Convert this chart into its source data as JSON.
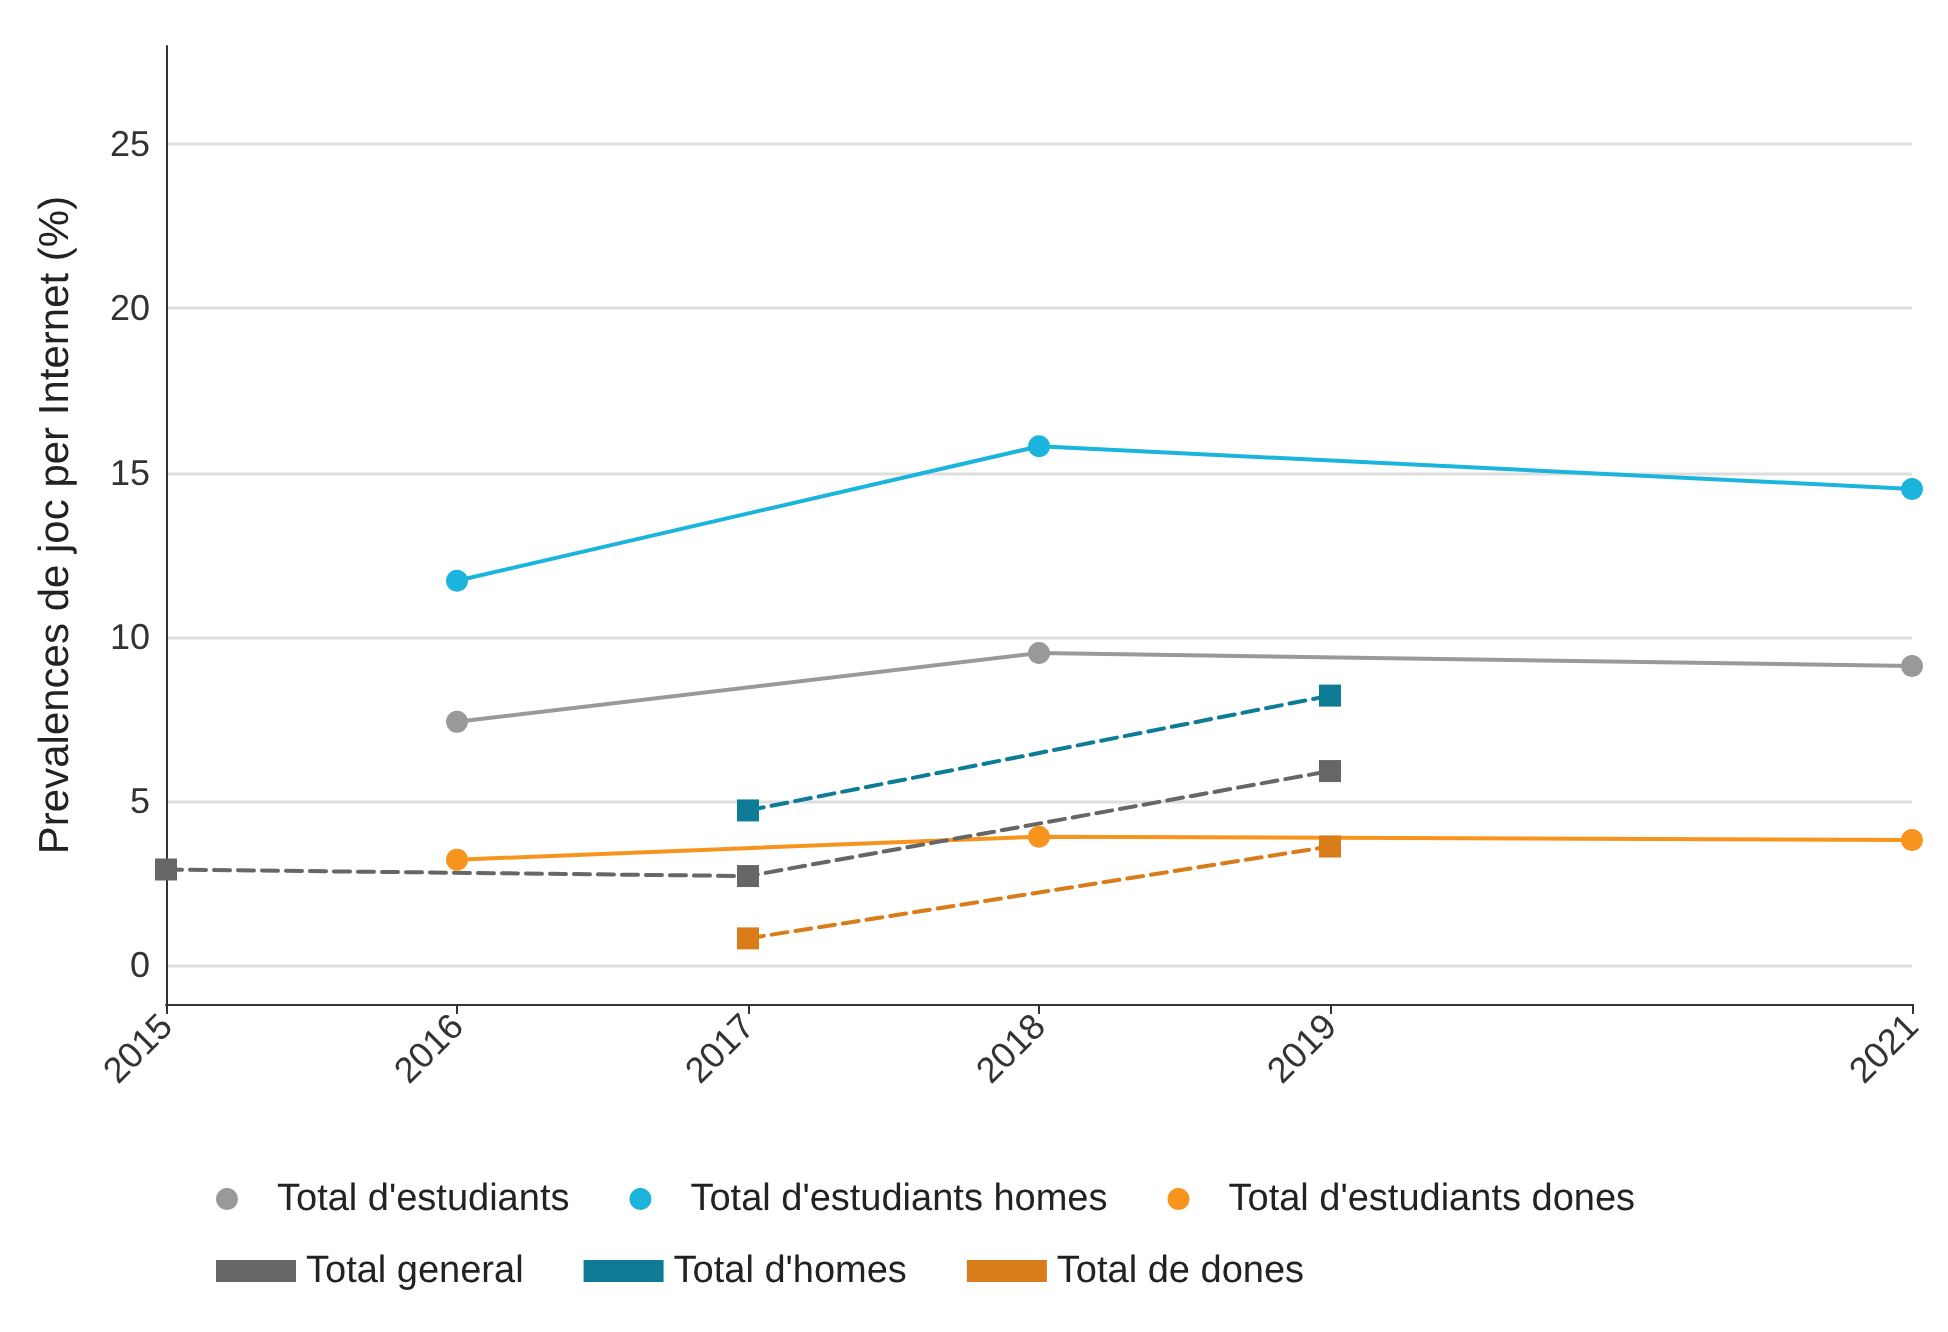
{
  "chart_data": {
    "type": "line",
    "ylabel": "Prevalences de joc per Internet (%)",
    "xlim": [
      2015,
      2021
    ],
    "xticks": [
      2015,
      2016,
      2017,
      2018,
      2019,
      2021
    ],
    "ylim": [
      -1.2,
      28
    ],
    "yticks": [
      0,
      5,
      10,
      15,
      20,
      25
    ],
    "grid": "y",
    "legend": "bottom",
    "series": [
      {
        "name": "Total d'estudiants",
        "color": "#999999",
        "marker": "circle",
        "line_style": "solid",
        "x": [
          2016,
          2018,
          2021
        ],
        "values": [
          7.4,
          9.5,
          9.1
        ]
      },
      {
        "name": "Total d'estudiants homes",
        "color": "#1ab4dc",
        "marker": "circle",
        "line_style": "solid",
        "x": [
          2016,
          2018,
          2021
        ],
        "values": [
          11.7,
          15.8,
          14.5
        ]
      },
      {
        "name": "Total d'estudiants dones",
        "color": "#f7941d",
        "marker": "circle",
        "line_style": "solid",
        "x": [
          2016,
          2018,
          2021
        ],
        "values": [
          3.2,
          3.9,
          3.8
        ]
      },
      {
        "name": "Total general",
        "color": "#666666",
        "marker": "square",
        "line_style": "dashed",
        "x": [
          2015,
          2017,
          2019
        ],
        "values": [
          2.9,
          2.7,
          5.9
        ]
      },
      {
        "name": "Total d'homes",
        "color": "#0e7c96",
        "marker": "square",
        "line_style": "dashed",
        "x": [
          2017,
          2019
        ],
        "values": [
          4.7,
          8.2
        ]
      },
      {
        "name": "Total de dones",
        "color": "#d97c1a",
        "marker": "square",
        "line_style": "dashed",
        "x": [
          2017,
          2019
        ],
        "values": [
          0.8,
          3.6
        ]
      }
    ]
  }
}
